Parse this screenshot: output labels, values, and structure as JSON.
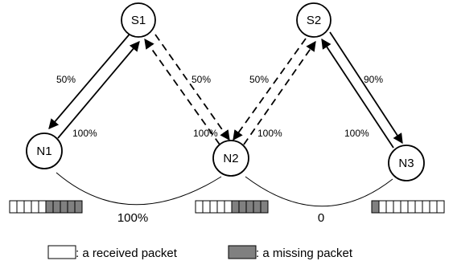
{
  "nodes": {
    "s1": "S1",
    "s2": "S2",
    "n1": "N1",
    "n2": "N2",
    "n3": "N3"
  },
  "edge_labels": {
    "s1_n1_down": "50%",
    "n1_s1_up": "100%",
    "s1_n2_dashed": "50%",
    "n2_s1_dashed": "100%",
    "s2_n2_dashed": "50%",
    "n2_s2_dashed": "100%",
    "s2_n3_down": "90%",
    "n3_s2_up": "100%"
  },
  "link_quality": {
    "n1_n2": "100%",
    "n2_n3": "0"
  },
  "packet_bars": {
    "n1": {
      "received": 5,
      "missing": 5
    },
    "n2": {
      "received": 5,
      "missing": 5
    },
    "n3": {
      "missing": 1,
      "received": 9
    }
  },
  "legend": {
    "received": ": a received packet",
    "missing": ": a missing packet"
  },
  "colors": {
    "missing_fill": "#808080",
    "received_fill": "#ffffff",
    "stroke": "#000000"
  }
}
